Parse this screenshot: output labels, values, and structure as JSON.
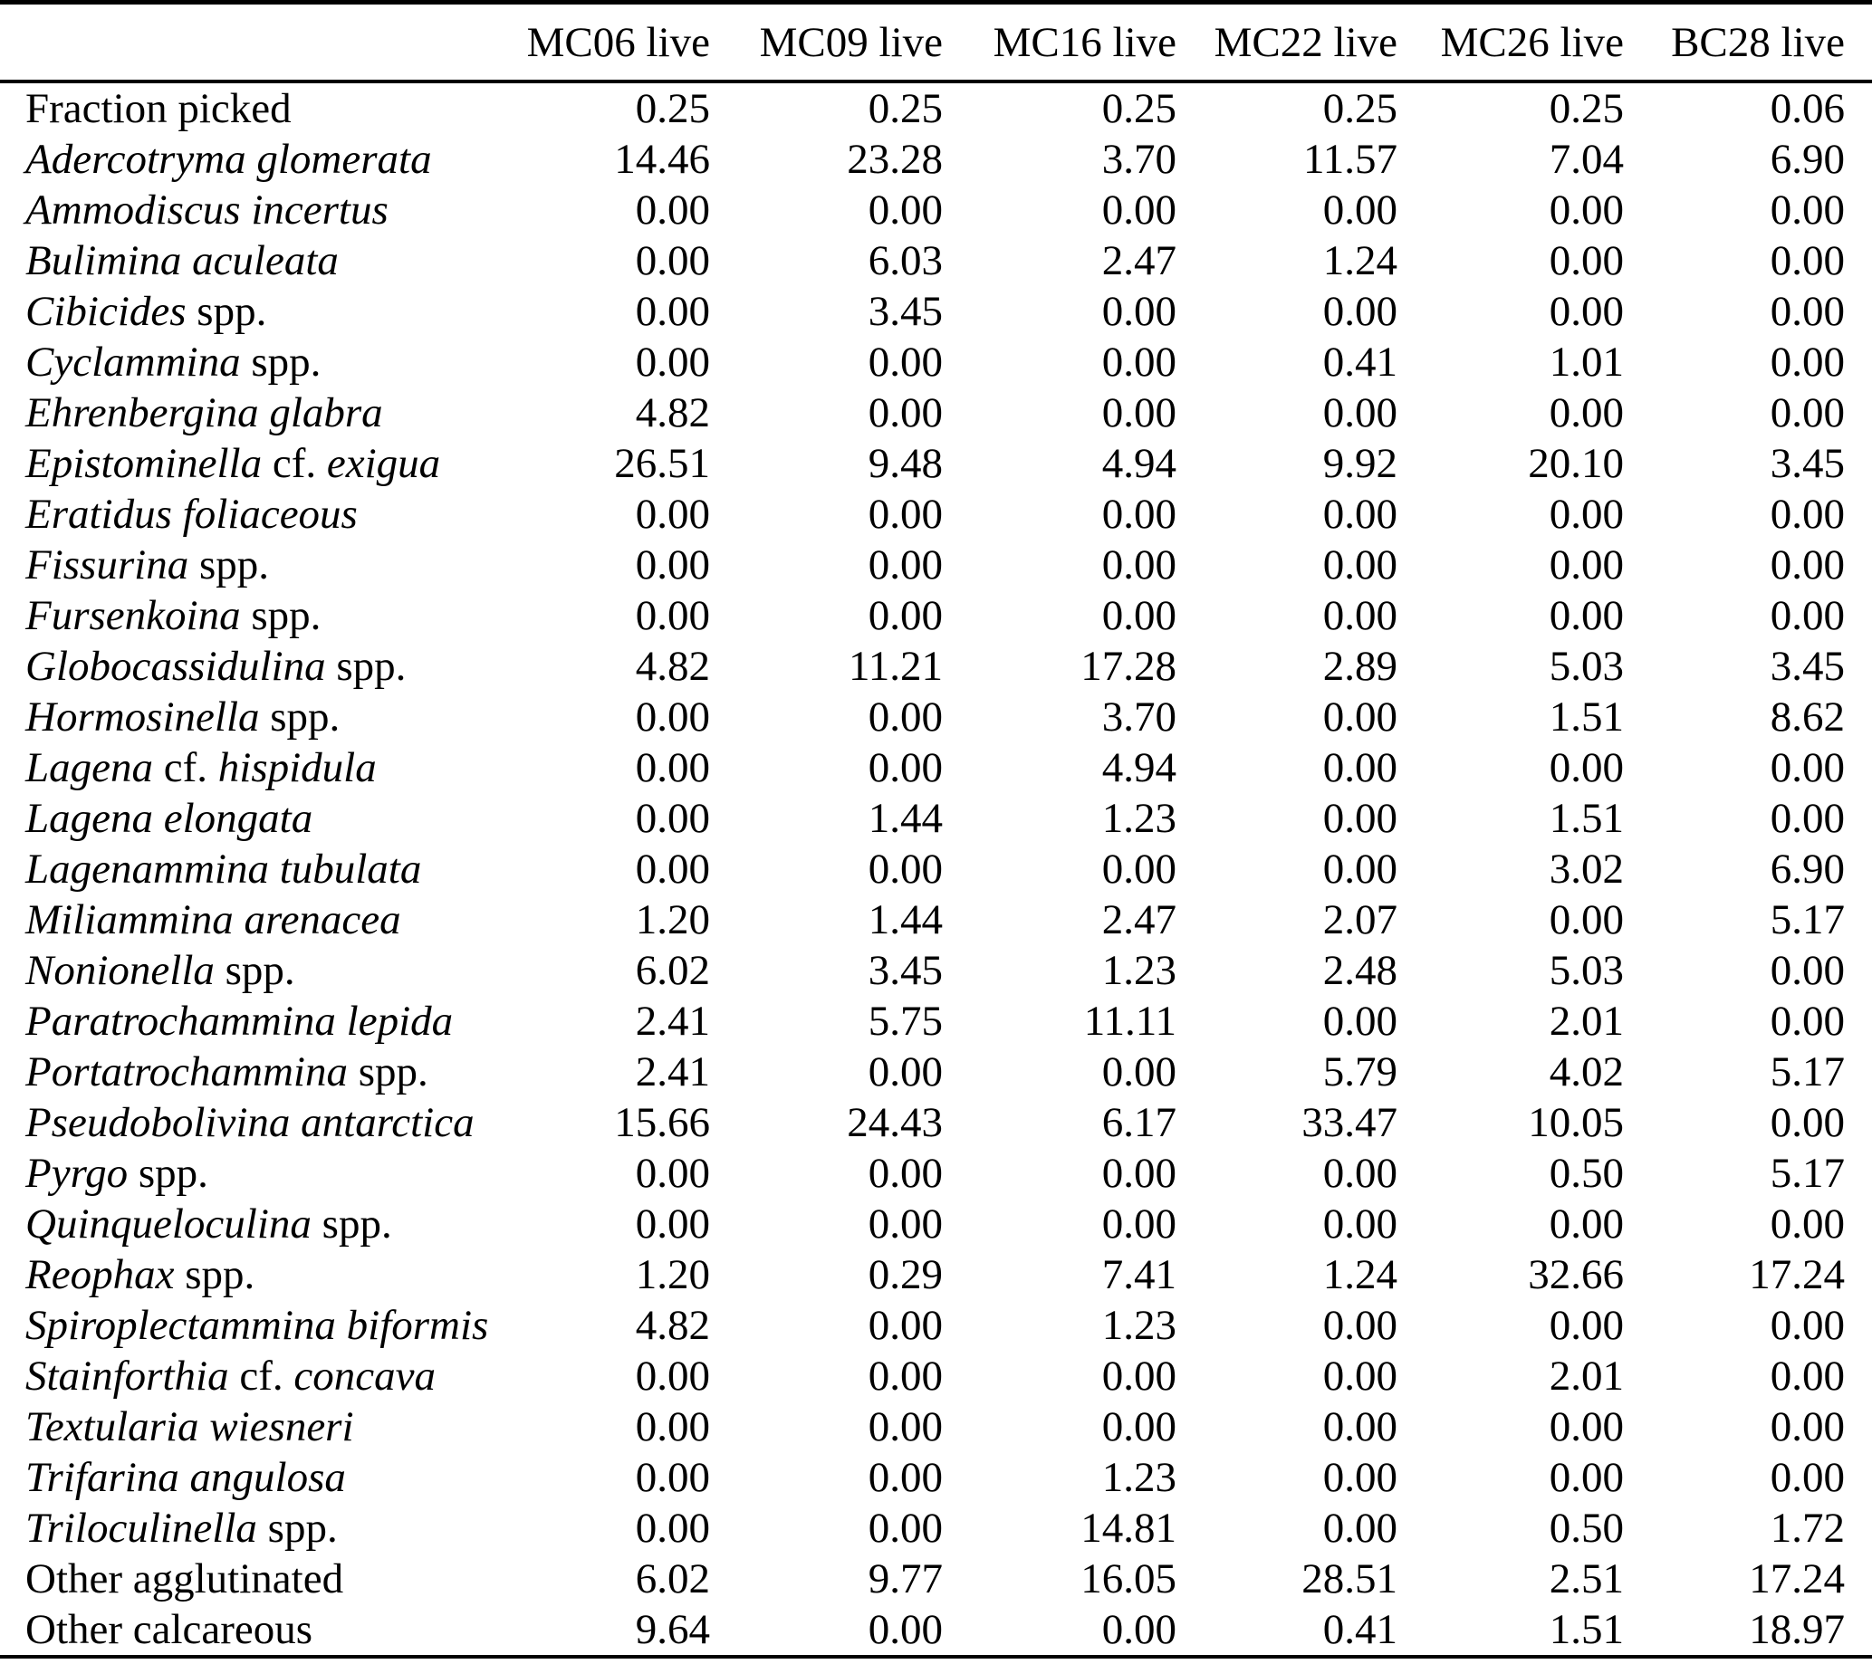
{
  "table": {
    "columns": [
      "MC06 live",
      "MC09 live",
      "MC16 live",
      "MC22 live",
      "MC26 live",
      "BC28 live"
    ],
    "rows": [
      {
        "label": [
          {
            "text": "Fraction picked",
            "italic": false
          }
        ],
        "values": [
          "0.25",
          "0.25",
          "0.25",
          "0.25",
          "0.25",
          "0.06"
        ]
      },
      {
        "label": [
          {
            "text": "Adercotryma glomerata",
            "italic": true
          }
        ],
        "values": [
          "14.46",
          "23.28",
          "3.70",
          "11.57",
          "7.04",
          "6.90"
        ]
      },
      {
        "label": [
          {
            "text": "Ammodiscus incertus",
            "italic": true
          }
        ],
        "values": [
          "0.00",
          "0.00",
          "0.00",
          "0.00",
          "0.00",
          "0.00"
        ]
      },
      {
        "label": [
          {
            "text": "Bulimina aculeata",
            "italic": true
          }
        ],
        "values": [
          "0.00",
          "6.03",
          "2.47",
          "1.24",
          "0.00",
          "0.00"
        ]
      },
      {
        "label": [
          {
            "text": "Cibicides",
            "italic": true
          },
          {
            "text": " spp.",
            "italic": false
          }
        ],
        "values": [
          "0.00",
          "3.45",
          "0.00",
          "0.00",
          "0.00",
          "0.00"
        ]
      },
      {
        "label": [
          {
            "text": "Cyclammina",
            "italic": true
          },
          {
            "text": " spp.",
            "italic": false
          }
        ],
        "values": [
          "0.00",
          "0.00",
          "0.00",
          "0.41",
          "1.01",
          "0.00"
        ]
      },
      {
        "label": [
          {
            "text": "Ehrenbergina glabra",
            "italic": true
          }
        ],
        "values": [
          "4.82",
          "0.00",
          "0.00",
          "0.00",
          "0.00",
          "0.00"
        ]
      },
      {
        "label": [
          {
            "text": "Epistominella",
            "italic": true
          },
          {
            "text": " cf. ",
            "italic": false
          },
          {
            "text": "exigua",
            "italic": true
          }
        ],
        "values": [
          "26.51",
          "9.48",
          "4.94",
          "9.92",
          "20.10",
          "3.45"
        ]
      },
      {
        "label": [
          {
            "text": "Eratidus foliaceous",
            "italic": true
          }
        ],
        "values": [
          "0.00",
          "0.00",
          "0.00",
          "0.00",
          "0.00",
          "0.00"
        ]
      },
      {
        "label": [
          {
            "text": "Fissurina",
            "italic": true
          },
          {
            "text": " spp.",
            "italic": false
          }
        ],
        "values": [
          "0.00",
          "0.00",
          "0.00",
          "0.00",
          "0.00",
          "0.00"
        ]
      },
      {
        "label": [
          {
            "text": "Fursenkoina",
            "italic": true
          },
          {
            "text": " spp.",
            "italic": false
          }
        ],
        "values": [
          "0.00",
          "0.00",
          "0.00",
          "0.00",
          "0.00",
          "0.00"
        ]
      },
      {
        "label": [
          {
            "text": "Globocassidulina",
            "italic": true
          },
          {
            "text": " spp.",
            "italic": false
          }
        ],
        "values": [
          "4.82",
          "11.21",
          "17.28",
          "2.89",
          "5.03",
          "3.45"
        ]
      },
      {
        "label": [
          {
            "text": "Hormosinella",
            "italic": true
          },
          {
            "text": " spp.",
            "italic": false
          }
        ],
        "values": [
          "0.00",
          "0.00",
          "3.70",
          "0.00",
          "1.51",
          "8.62"
        ]
      },
      {
        "label": [
          {
            "text": "Lagena",
            "italic": true
          },
          {
            "text": " cf. ",
            "italic": false
          },
          {
            "text": "hispidula",
            "italic": true
          }
        ],
        "values": [
          "0.00",
          "0.00",
          "4.94",
          "0.00",
          "0.00",
          "0.00"
        ]
      },
      {
        "label": [
          {
            "text": "Lagena elongata",
            "italic": true
          }
        ],
        "values": [
          "0.00",
          "1.44",
          "1.23",
          "0.00",
          "1.51",
          "0.00"
        ]
      },
      {
        "label": [
          {
            "text": "Lagenammina tubulata",
            "italic": true
          }
        ],
        "values": [
          "0.00",
          "0.00",
          "0.00",
          "0.00",
          "3.02",
          "6.90"
        ]
      },
      {
        "label": [
          {
            "text": "Miliammina arenacea",
            "italic": true
          }
        ],
        "values": [
          "1.20",
          "1.44",
          "2.47",
          "2.07",
          "0.00",
          "5.17"
        ]
      },
      {
        "label": [
          {
            "text": "Nonionella",
            "italic": true
          },
          {
            "text": " spp.",
            "italic": false
          }
        ],
        "values": [
          "6.02",
          "3.45",
          "1.23",
          "2.48",
          "5.03",
          "0.00"
        ]
      },
      {
        "label": [
          {
            "text": "Paratrochammina lepida",
            "italic": true
          }
        ],
        "values": [
          "2.41",
          "5.75",
          "11.11",
          "0.00",
          "2.01",
          "0.00"
        ]
      },
      {
        "label": [
          {
            "text": "Portatrochammina",
            "italic": true
          },
          {
            "text": " spp.",
            "italic": false
          }
        ],
        "values": [
          "2.41",
          "0.00",
          "0.00",
          "5.79",
          "4.02",
          "5.17"
        ]
      },
      {
        "label": [
          {
            "text": "Pseudobolivina antarctica",
            "italic": true
          }
        ],
        "values": [
          "15.66",
          "24.43",
          "6.17",
          "33.47",
          "10.05",
          "0.00"
        ]
      },
      {
        "label": [
          {
            "text": "Pyrgo",
            "italic": true
          },
          {
            "text": " spp.",
            "italic": false
          }
        ],
        "values": [
          "0.00",
          "0.00",
          "0.00",
          "0.00",
          "0.50",
          "5.17"
        ]
      },
      {
        "label": [
          {
            "text": "Quinqueloculina",
            "italic": true
          },
          {
            "text": " spp.",
            "italic": false
          }
        ],
        "values": [
          "0.00",
          "0.00",
          "0.00",
          "0.00",
          "0.00",
          "0.00"
        ]
      },
      {
        "label": [
          {
            "text": "Reophax",
            "italic": true
          },
          {
            "text": " spp.",
            "italic": false
          }
        ],
        "values": [
          "1.20",
          "0.29",
          "7.41",
          "1.24",
          "32.66",
          "17.24"
        ]
      },
      {
        "label": [
          {
            "text": "Spiroplectammina biformis",
            "italic": true
          }
        ],
        "values": [
          "4.82",
          "0.00",
          "1.23",
          "0.00",
          "0.00",
          "0.00"
        ]
      },
      {
        "label": [
          {
            "text": "Stainforthia",
            "italic": true
          },
          {
            "text": " cf. ",
            "italic": false
          },
          {
            "text": "concava",
            "italic": true
          }
        ],
        "values": [
          "0.00",
          "0.00",
          "0.00",
          "0.00",
          "2.01",
          "0.00"
        ]
      },
      {
        "label": [
          {
            "text": "Textularia wiesneri",
            "italic": true
          }
        ],
        "values": [
          "0.00",
          "0.00",
          "0.00",
          "0.00",
          "0.00",
          "0.00"
        ]
      },
      {
        "label": [
          {
            "text": "Trifarina angulosa",
            "italic": true
          }
        ],
        "values": [
          "0.00",
          "0.00",
          "1.23",
          "0.00",
          "0.00",
          "0.00"
        ]
      },
      {
        "label": [
          {
            "text": "Triloculinella",
            "italic": true
          },
          {
            "text": " spp.",
            "italic": false
          }
        ],
        "values": [
          "0.00",
          "0.00",
          "14.81",
          "0.00",
          "0.50",
          "1.72"
        ]
      },
      {
        "label": [
          {
            "text": "Other agglutinated",
            "italic": false
          }
        ],
        "values": [
          "6.02",
          "9.77",
          "16.05",
          "28.51",
          "2.51",
          "17.24"
        ]
      },
      {
        "label": [
          {
            "text": "Other calcareous",
            "italic": false
          }
        ],
        "values": [
          "9.64",
          "0.00",
          "0.00",
          "0.41",
          "1.51",
          "18.97"
        ]
      }
    ]
  },
  "colors": {
    "text": "#000000",
    "background": "#ffffff",
    "rule": "#000000"
  }
}
